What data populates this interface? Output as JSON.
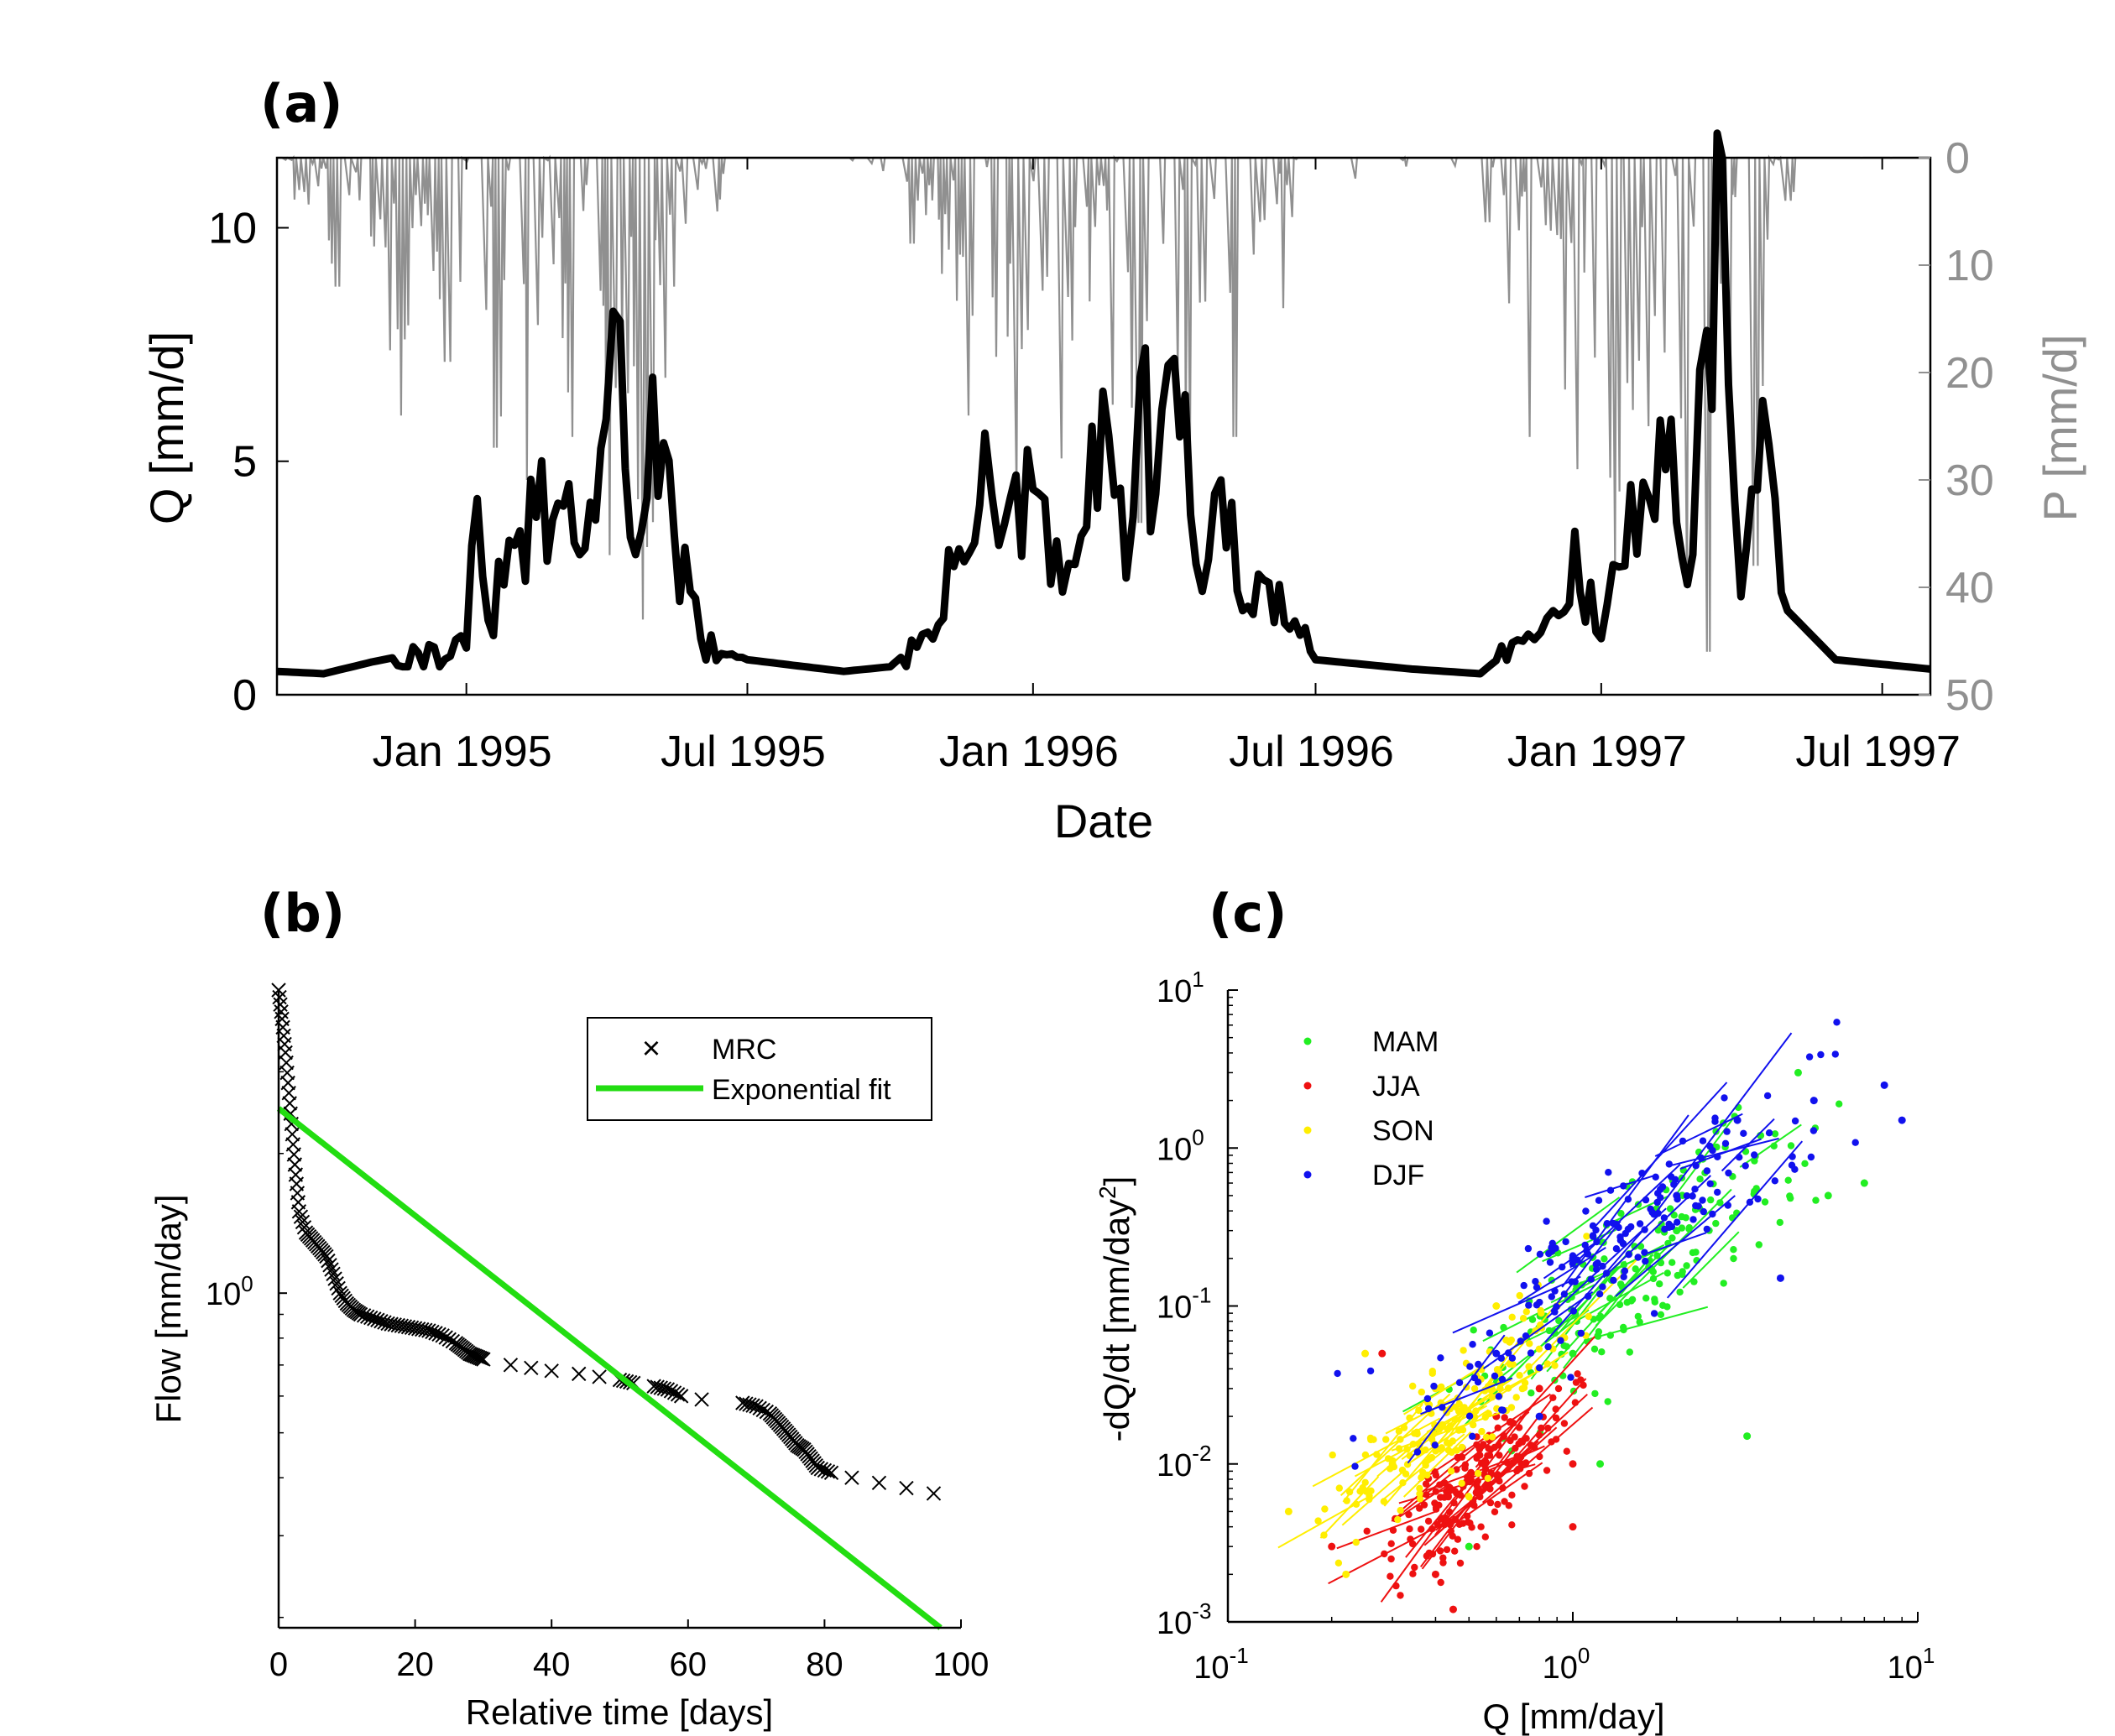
{
  "chart_data": [
    {
      "panel": "(a)",
      "type": "line",
      "xlabel": "Date",
      "ylabel": "Q [mm/d]",
      "ylabel_right": "P [mm/d]",
      "x_ticks": [
        "Jan 1995",
        "Jul 1995",
        "Jan 1996",
        "Jul 1996",
        "Jan 1997",
        "Jul 1997"
      ],
      "x_range": [
        "1994-09-01",
        "1997-08-01"
      ],
      "ylim": [
        0,
        11.5
      ],
      "y_ticks": [
        0,
        5,
        10
      ],
      "ylim_right_reversed": [
        0,
        50
      ],
      "y_ticks_right": [
        0,
        10,
        20,
        30,
        40,
        50
      ],
      "series": [
        {
          "role": "discharge Q (black, left axis)",
          "color": "#000000",
          "points": [
            [
              "1994-09-01",
              0.5
            ],
            [
              "1994-10-01",
              0.45
            ],
            [
              "1994-11-01",
              0.7
            ],
            [
              "1994-12-01",
              0.9
            ],
            [
              "1995-01-01",
              1.0
            ],
            [
              "1995-01-08",
              4.2
            ],
            [
              "1995-01-15",
              1.6
            ],
            [
              "1995-02-01",
              3.2
            ],
            [
              "1995-02-15",
              3.8
            ],
            [
              "1995-03-01",
              4.1
            ],
            [
              "1995-03-15",
              3.0
            ],
            [
              "1995-04-01",
              5.9
            ],
            [
              "1995-04-10",
              8.0
            ],
            [
              "1995-04-20",
              3.0
            ],
            [
              "1995-05-01",
              6.8
            ],
            [
              "1995-05-15",
              3.4
            ],
            [
              "1995-06-01",
              1.2
            ],
            [
              "1995-07-01",
              0.75
            ],
            [
              "1995-09-01",
              0.5
            ],
            [
              "1995-10-01",
              0.6
            ],
            [
              "1995-11-01",
              1.5
            ],
            [
              "1995-12-01",
              5.6
            ],
            [
              "1995-12-10",
              3.2
            ],
            [
              "1996-01-01",
              4.4
            ],
            [
              "1996-01-20",
              2.2
            ],
            [
              "1996-02-01",
              3.4
            ],
            [
              "1996-02-15",
              6.5
            ],
            [
              "1996-03-01",
              2.5
            ],
            [
              "1996-03-10",
              6.8
            ],
            [
              "1996-03-20",
              4.3
            ],
            [
              "1996-04-01",
              7.2
            ],
            [
              "1996-04-15",
              2.8
            ],
            [
              "1996-05-01",
              4.6
            ],
            [
              "1996-05-15",
              1.8
            ],
            [
              "1996-06-01",
              2.4
            ],
            [
              "1996-07-01",
              0.75
            ],
            [
              "1996-09-01",
              0.55
            ],
            [
              "1996-10-15",
              0.45
            ],
            [
              "1996-11-15",
              1.3
            ],
            [
              "1996-12-01",
              1.8
            ],
            [
              "1996-12-15",
              3.5
            ],
            [
              "1997-01-01",
              1.2
            ],
            [
              "1997-01-20",
              4.5
            ],
            [
              "1997-02-01",
              4.2
            ],
            [
              "1997-02-15",
              5.9
            ],
            [
              "1997-03-01",
              3.0
            ],
            [
              "1997-03-10",
              7.8
            ],
            [
              "1997-03-20",
              11.5
            ],
            [
              "1997-04-01",
              2.1
            ],
            [
              "1997-04-15",
              6.3
            ],
            [
              "1997-05-01",
              1.8
            ],
            [
              "1997-06-01",
              0.75
            ],
            [
              "1997-08-01",
              0.55
            ]
          ]
        },
        {
          "role": "precipitation P (grey, right axis, inverted)",
          "color": "#909090",
          "points": [
            [
              "1994-09-15",
              3
            ],
            [
              "1994-10-10",
              12
            ],
            [
              "1994-11-20",
              24
            ],
            [
              "1994-12-20",
              19
            ],
            [
              "1995-01-20",
              27
            ],
            [
              "1995-02-10",
              30
            ],
            [
              "1995-03-10",
              26
            ],
            [
              "1995-04-05",
              37
            ],
            [
              "1995-04-25",
              43
            ],
            [
              "1995-05-15",
              12
            ],
            [
              "1995-06-10",
              5
            ],
            [
              "1995-10-15",
              8
            ],
            [
              "1995-11-20",
              24
            ],
            [
              "1995-12-20",
              31
            ],
            [
              "1996-01-20",
              28
            ],
            [
              "1996-02-20",
              23
            ],
            [
              "1996-03-10",
              34
            ],
            [
              "1996-04-10",
              27
            ],
            [
              "1996-05-10",
              26
            ],
            [
              "1996-06-10",
              14
            ],
            [
              "1996-10-20",
              6
            ],
            [
              "1996-11-15",
              26
            ],
            [
              "1996-12-15",
              29
            ],
            [
              "1997-01-10",
              38
            ],
            [
              "1997-02-01",
              25
            ],
            [
              "1997-02-25",
              40
            ],
            [
              "1997-03-10",
              46
            ],
            [
              "1997-04-10",
              38
            ],
            [
              "1997-05-01",
              4
            ]
          ]
        }
      ]
    },
    {
      "panel": "(b)",
      "type": "scatter",
      "xlabel": "Relative time [days]",
      "ylabel": "Flow [mm/day]",
      "xlim": [
        0,
        100
      ],
      "x_ticks": [
        0,
        20,
        40,
        60,
        80,
        100
      ],
      "y_scale": "log",
      "ylim": [
        0.19,
        4.5
      ],
      "y_tick_label": "10^0",
      "legend": [
        "MRC",
        "Exponential fit"
      ],
      "legend_placement": "top-right",
      "series": [
        {
          "name": "MRC",
          "marker": "x",
          "color": "#000000",
          "points": [
            [
              0,
              4.5
            ],
            [
              0.5,
              3.9
            ],
            [
              1,
              3.3
            ],
            [
              1.5,
              2.7
            ],
            [
              2,
              2.2
            ],
            [
              2.5,
              1.8
            ],
            [
              3,
              1.5
            ],
            [
              4,
              1.35
            ],
            [
              5,
              1.3
            ],
            [
              6,
              1.25
            ],
            [
              7,
              1.2
            ],
            [
              8,
              1.1
            ],
            [
              9,
              1.0
            ],
            [
              10,
              0.95
            ],
            [
              11,
              0.92
            ],
            [
              12,
              0.9
            ],
            [
              14,
              0.88
            ],
            [
              16,
              0.86
            ],
            [
              18,
              0.85
            ],
            [
              20,
              0.84
            ],
            [
              22,
              0.83
            ],
            [
              24,
              0.81
            ],
            [
              26,
              0.78
            ],
            [
              27,
              0.76
            ],
            [
              28,
              0.74
            ],
            [
              29,
              0.73
            ],
            [
              30,
              0.72
            ],
            [
              34,
              0.7
            ],
            [
              37,
              0.69
            ],
            [
              40,
              0.68
            ],
            [
              44,
              0.67
            ],
            [
              47,
              0.66
            ],
            [
              50,
              0.65
            ],
            [
              52,
              0.64
            ],
            [
              55,
              0.63
            ],
            [
              57,
              0.62
            ],
            [
              59,
              0.6
            ],
            [
              62,
              0.59
            ],
            [
              68,
              0.58
            ],
            [
              70,
              0.57
            ],
            [
              72,
              0.55
            ],
            [
              73,
              0.53
            ],
            [
              74,
              0.51
            ],
            [
              75,
              0.49
            ],
            [
              76,
              0.47
            ],
            [
              77,
              0.46
            ],
            [
              78,
              0.44
            ],
            [
              79,
              0.42
            ],
            [
              81,
              0.41
            ],
            [
              84,
              0.4
            ],
            [
              88,
              0.39
            ],
            [
              92,
              0.38
            ],
            [
              96,
              0.37
            ]
          ]
        },
        {
          "name": "Exponential fit",
          "type": "line",
          "color": "#22dd11",
          "points": [
            [
              0,
              2.5
            ],
            [
              97,
              0.19
            ]
          ]
        }
      ]
    },
    {
      "panel": "(c)",
      "type": "scatter",
      "xlabel": "Q [mm/day]",
      "ylabel": "-dQ/dt [mm/day^2]",
      "x_scale": "log",
      "y_scale": "log",
      "xlim": [
        0.1,
        10
      ],
      "ylim": [
        0.001,
        10
      ],
      "x_tick_exponents": [
        "-1",
        "0",
        "1"
      ],
      "y_tick_exponents": [
        "1",
        "0",
        "-1",
        "-2",
        "-3"
      ],
      "legend": [
        "MAM",
        "JJA",
        "SON",
        "DJF"
      ],
      "legend_placement": "top-left",
      "series": [
        {
          "name": "MAM",
          "color": "#22ee22",
          "center": [
            1.6,
            0.2
          ],
          "spread": [
            0.35,
            0.55
          ],
          "points": [
            [
              0.5,
              0.003
            ],
            [
              1.0,
              0.05
            ],
            [
              2.0,
              0.3
            ],
            [
              3.5,
              1.2
            ],
            [
              4.5,
              3.0
            ],
            [
              5.5,
              0.5
            ],
            [
              1.2,
              0.01
            ],
            [
              3.2,
              0.015
            ],
            [
              7.0,
              0.6
            ]
          ]
        },
        {
          "name": "JJA",
          "color": "#ee1111",
          "center": [
            0.55,
            0.008
          ],
          "spread": [
            0.2,
            0.35
          ],
          "points": [
            [
              0.2,
              0.003
            ],
            [
              0.4,
              0.002
            ],
            [
              0.45,
              0.0012
            ],
            [
              0.6,
              0.02
            ],
            [
              0.8,
              0.03
            ],
            [
              1.0,
              0.01
            ],
            [
              0.28,
              0.05
            ],
            [
              1.0,
              0.004
            ]
          ]
        },
        {
          "name": "SON",
          "color": "#ffee00",
          "center": [
            0.45,
            0.02
          ],
          "spread": [
            0.25,
            0.4
          ],
          "points": [
            [
              0.15,
              0.005
            ],
            [
              0.22,
              0.002
            ],
            [
              0.3,
              0.01
            ],
            [
              0.4,
              0.03
            ],
            [
              0.6,
              0.1
            ],
            [
              0.9,
              0.1
            ],
            [
              0.25,
              0.05
            ]
          ]
        },
        {
          "name": "DJF",
          "color": "#1111ee",
          "center": [
            1.4,
            0.25
          ],
          "spread": [
            0.4,
            0.5
          ],
          "points": [
            [
              0.6,
              0.05
            ],
            [
              1.0,
              0.2
            ],
            [
              2.0,
              0.5
            ],
            [
              3.0,
              1.5
            ],
            [
              5.0,
              2.0
            ],
            [
              8.0,
              2.5
            ],
            [
              9.0,
              1.5
            ],
            [
              0.8,
              0.02
            ],
            [
              4.0,
              0.15
            ]
          ]
        }
      ]
    }
  ]
}
